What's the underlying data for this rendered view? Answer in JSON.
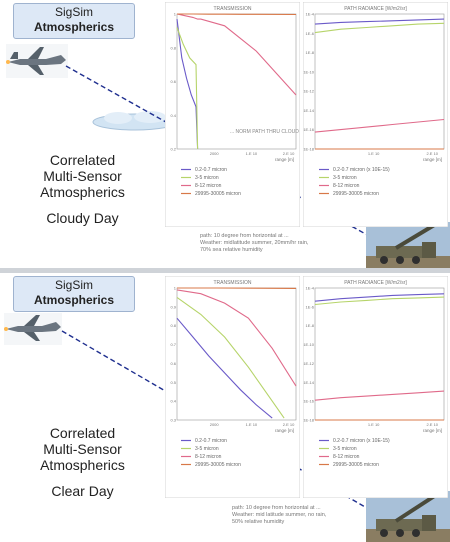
{
  "panels": [
    {
      "brand_line1": "SigSim",
      "brand_line2": "Atmospherics",
      "title_lines": [
        "Correlated",
        "Multi-Sensor",
        "Atmospherics"
      ],
      "caption": "Cloudy Day",
      "note_lines": [
        "path: 10 degree from horizontal at ...",
        "Weather: midlatitude summer, 20mm/hr rain,",
        "70% sea relative humidity"
      ],
      "cloud_label": "... NORM PATH THRU CLOUD"
    },
    {
      "brand_line1": "SigSim",
      "brand_line2": "Atmospherics",
      "title_lines": [
        "Correlated",
        "Multi-Sensor",
        "Atmospherics"
      ],
      "caption": "Clear Day",
      "note_lines": [
        "path: 10 degree from horizontal at ...",
        "Weather: mid latitude summer, no rain,",
        "50% relative humidity"
      ]
    }
  ],
  "chart_data": [
    {
      "type": "line",
      "title": "TRANSMISSION",
      "xlabel": "range [m]",
      "x_ticks": [
        "2000",
        "1.E 10",
        "2.E 10"
      ],
      "y_ticks": [
        "1",
        "0.8",
        "0.6",
        "0.4",
        "0.2"
      ],
      "ylim": [
        0.2,
        1.0
      ],
      "series": [
        {
          "name": "0.2-0.7 micron",
          "color": "#6a5ac8",
          "x": [
            0,
            60,
            120,
            180,
            240,
            260
          ],
          "y": [
            0.97,
            0.74,
            0.62,
            0.52,
            0.45,
            0.2
          ]
        },
        {
          "name": "3-5 micron",
          "color": "#b6d46a",
          "x": [
            0,
            80,
            160,
            240,
            260
          ],
          "y": [
            0.92,
            0.82,
            0.74,
            0.7,
            0.2
          ]
        },
        {
          "name": "8-12 micron",
          "color": "#e06a8a",
          "x": [
            0,
            100,
            200,
            260,
            300,
            600,
            1000,
            1500
          ],
          "y": [
            1.0,
            0.99,
            0.98,
            0.97,
            0.97,
            0.93,
            0.78,
            0.52
          ]
        },
        {
          "name": "29995-30005 micron",
          "color": "#d87848",
          "x": [
            0,
            200,
            400,
            600,
            800,
            1000,
            1500
          ],
          "y": [
            1.0,
            1.0,
            0.999,
            0.999,
            0.998,
            0.998,
            0.997
          ]
        }
      ]
    },
    {
      "type": "line",
      "title": "PATH RADIANCE [W/m2/sr]",
      "xlabel": "range [m]",
      "x_ticks": [
        "1.E 10",
        "2.E 10"
      ],
      "y_ticks": [
        "1E-4",
        "1E-6",
        "1E-8",
        "1E-10",
        "1E-12",
        "1E-14",
        "1E-16",
        "1E-18"
      ],
      "ylim": [
        -19,
        -3
      ],
      "series": [
        {
          "name": "0.2-0.7 micron (x 10E-15)",
          "color": "#6a5ac8",
          "x": [
            0,
            300,
            600,
            900,
            1200,
            1500
          ],
          "y": [
            -4.2,
            -4.0,
            -3.9,
            -3.8,
            -3.7,
            -3.6
          ]
        },
        {
          "name": "3-5 micron",
          "color": "#b6d46a",
          "x": [
            0,
            300,
            600,
            900,
            1200,
            1500
          ],
          "y": [
            -5.2,
            -4.8,
            -4.6,
            -4.4,
            -4.2,
            -4.1
          ]
        },
        {
          "name": "8-12 micron",
          "color": "#e06a8a",
          "x": [
            0,
            300,
            600,
            900,
            1200,
            1500
          ],
          "y": [
            -17.0,
            -16.7,
            -16.4,
            -16.1,
            -15.8,
            -15.5
          ]
        },
        {
          "name": "29995-30005 micron",
          "color": "#d87848",
          "x": [
            0,
            1500
          ],
          "y": [
            -19,
            -19
          ]
        }
      ]
    },
    {
      "type": "line",
      "title": "TRANSMISSION",
      "xlabel": "range [m]",
      "x_ticks": [
        "2000",
        "1.E 10",
        "2.E 10"
      ],
      "y_ticks": [
        "1",
        "0.9",
        "0.8",
        "0.7",
        "0.6",
        "0.5",
        "0.4",
        "0.3"
      ],
      "ylim": [
        0.3,
        1.0
      ],
      "series": [
        {
          "name": "0.2-0.7 micron",
          "color": "#6a5ac8",
          "x": [
            0,
            200,
            400,
            600,
            800,
            1000,
            1200
          ],
          "y": [
            0.84,
            0.74,
            0.64,
            0.55,
            0.46,
            0.38,
            0.31
          ]
        },
        {
          "name": "3-5 micron",
          "color": "#b6d46a",
          "x": [
            0,
            300,
            600,
            900,
            1200,
            1350
          ],
          "y": [
            0.95,
            0.86,
            0.74,
            0.58,
            0.4,
            0.31
          ]
        },
        {
          "name": "8-12 micron",
          "color": "#e06a8a",
          "x": [
            0,
            300,
            600,
            900,
            1200,
            1500
          ],
          "y": [
            0.99,
            0.97,
            0.92,
            0.84,
            0.68,
            0.48
          ]
        },
        {
          "name": "29995-30005 micron",
          "color": "#d87848",
          "x": [
            0,
            500,
            1000,
            1500
          ],
          "y": [
            1.0,
            1.0,
            0.999,
            0.998
          ]
        }
      ]
    },
    {
      "type": "line",
      "title": "PATH RADIANCE [W/m2/sr]",
      "xlabel": "range [m]",
      "x_ticks": [
        "1.E 10",
        "2.E 10"
      ],
      "y_ticks": [
        "1E-4",
        "1E-6",
        "1E-8",
        "1E-10",
        "1E-12",
        "1E-14",
        "1E-16",
        "1E-18"
      ],
      "ylim": [
        -19,
        -3
      ],
      "series": [
        {
          "name": "0.2-0.7 micron (x 10E-15)",
          "color": "#6a5ac8",
          "x": [
            0,
            300,
            600,
            900,
            1200,
            1500
          ],
          "y": [
            -4.6,
            -4.3,
            -4.1,
            -3.9,
            -3.8,
            -3.7
          ]
        },
        {
          "name": "3-5 micron",
          "color": "#b6d46a",
          "x": [
            0,
            300,
            600,
            900,
            1200,
            1500
          ],
          "y": [
            -5.0,
            -4.7,
            -4.5,
            -4.3,
            -4.2,
            -4.1
          ]
        },
        {
          "name": "8-12 micron",
          "color": "#e06a8a",
          "x": [
            0,
            300,
            600,
            900,
            1200,
            1500
          ],
          "y": [
            -16.6,
            -16.3,
            -16.1,
            -15.9,
            -15.7,
            -15.5
          ]
        },
        {
          "name": "29995-30005 micron",
          "color": "#d87848",
          "x": [
            0,
            1500
          ],
          "y": [
            -19,
            -19
          ]
        }
      ]
    }
  ]
}
